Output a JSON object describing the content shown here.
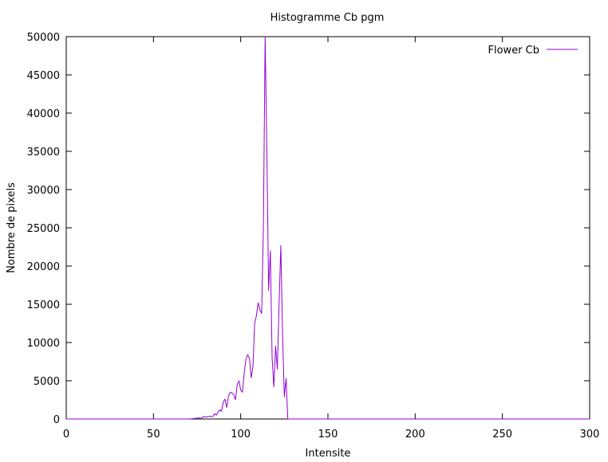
{
  "chart_data": {
    "type": "line",
    "title": "Histogramme Cb pgm",
    "xlabel": "Intensite",
    "ylabel": "Nombre de pixels",
    "xlim": [
      0,
      300
    ],
    "ylim": [
      0,
      50000
    ],
    "xticks": [
      0,
      50,
      100,
      150,
      200,
      250,
      300
    ],
    "yticks": [
      0,
      5000,
      10000,
      15000,
      20000,
      25000,
      30000,
      35000,
      40000,
      45000,
      50000
    ],
    "xtick_labels": [
      "0",
      "50",
      "100",
      "150",
      "200",
      "250",
      "300"
    ],
    "ytick_labels": [
      "0",
      "5000",
      "10000",
      "15000",
      "20000",
      "25000",
      "30000",
      "35000",
      "40000",
      "45000",
      "50000"
    ],
    "grid": false,
    "legend_position": "top-right",
    "series": [
      {
        "name": "Flower Cb",
        "color": "#9400d3",
        "x": [
          0,
          70,
          72,
          75,
          76,
          77,
          78,
          79,
          80,
          82,
          84,
          85,
          86,
          87,
          88,
          89,
          90,
          91,
          92,
          93,
          94,
          95,
          96,
          97,
          98,
          99,
          100,
          101,
          102,
          103,
          104,
          105,
          106,
          107,
          108,
          109,
          110,
          111,
          112,
          113,
          114,
          115,
          116,
          117,
          118,
          119,
          120,
          121,
          122,
          123,
          124,
          125,
          126,
          127,
          128,
          129,
          130,
          300
        ],
        "y": [
          0,
          0,
          30,
          100,
          150,
          60,
          200,
          300,
          250,
          350,
          300,
          700,
          500,
          900,
          1200,
          1000,
          2200,
          2600,
          1500,
          3000,
          3500,
          3400,
          3200,
          2500,
          4500,
          5000,
          3800,
          3500,
          6000,
          7800,
          8400,
          8000,
          5400,
          6800,
          12500,
          13500,
          15200,
          14300,
          13800,
          25000,
          50000,
          35000,
          16800,
          22000,
          8000,
          4200,
          9500,
          6500,
          15000,
          22700,
          11000,
          2900,
          5300,
          0,
          0,
          0,
          0,
          0
        ]
      }
    ]
  }
}
